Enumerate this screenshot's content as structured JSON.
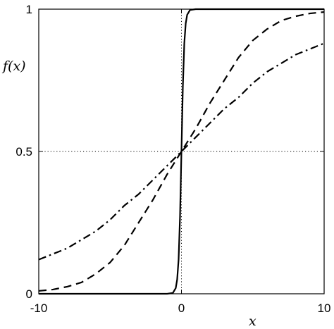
{
  "chart_data": {
    "type": "line",
    "xlabel": "x",
    "ylabel": "f(x)",
    "xlim": [
      -10,
      10
    ],
    "ylim": [
      0,
      1
    ],
    "x_ticks": [
      -10,
      0,
      10
    ],
    "x_tick_labels": [
      "-10",
      "0",
      "10"
    ],
    "y_ticks": [
      0,
      0.5,
      1
    ],
    "y_tick_labels": [
      "0",
      "0.5",
      "1"
    ],
    "grid": false,
    "legend": "none",
    "reference_lines": [
      {
        "orientation": "horizontal",
        "value": 0.5,
        "style": "dotted"
      },
      {
        "orientation": "vertical",
        "value": 0,
        "style": "dotted"
      }
    ],
    "series": [
      {
        "style": "solid",
        "x": [
          -10,
          -1,
          -0.6,
          -0.4,
          -0.3,
          -0.2,
          -0.1,
          0,
          0.1,
          0.2,
          0.3,
          0.4,
          0.6,
          1,
          10
        ],
        "y": [
          0,
          0,
          0.003,
          0.02,
          0.05,
          0.12,
          0.27,
          0.5,
          0.73,
          0.88,
          0.95,
          0.98,
          0.997,
          1,
          1
        ]
      },
      {
        "style": "dashed",
        "x": [
          -10,
          -9,
          -8,
          -7,
          -6,
          -5,
          -4,
          -3,
          -2,
          -1,
          0,
          1,
          2,
          3,
          4,
          5,
          6,
          7,
          8,
          9,
          10
        ],
        "y": [
          0.01,
          0.015,
          0.025,
          0.04,
          0.07,
          0.11,
          0.17,
          0.25,
          0.33,
          0.42,
          0.5,
          0.58,
          0.67,
          0.75,
          0.83,
          0.89,
          0.93,
          0.96,
          0.975,
          0.985,
          0.99
        ]
      },
      {
        "style": "dash-dot",
        "x": [
          -10,
          -9,
          -8,
          -7,
          -6,
          -5,
          -4,
          -3,
          -2,
          -1,
          0,
          1,
          2,
          3,
          4,
          5,
          6,
          7,
          8,
          9,
          10
        ],
        "y": [
          0.12,
          0.14,
          0.16,
          0.19,
          0.22,
          0.26,
          0.31,
          0.35,
          0.4,
          0.45,
          0.5,
          0.55,
          0.6,
          0.65,
          0.69,
          0.74,
          0.78,
          0.81,
          0.84,
          0.86,
          0.88
        ]
      }
    ]
  }
}
